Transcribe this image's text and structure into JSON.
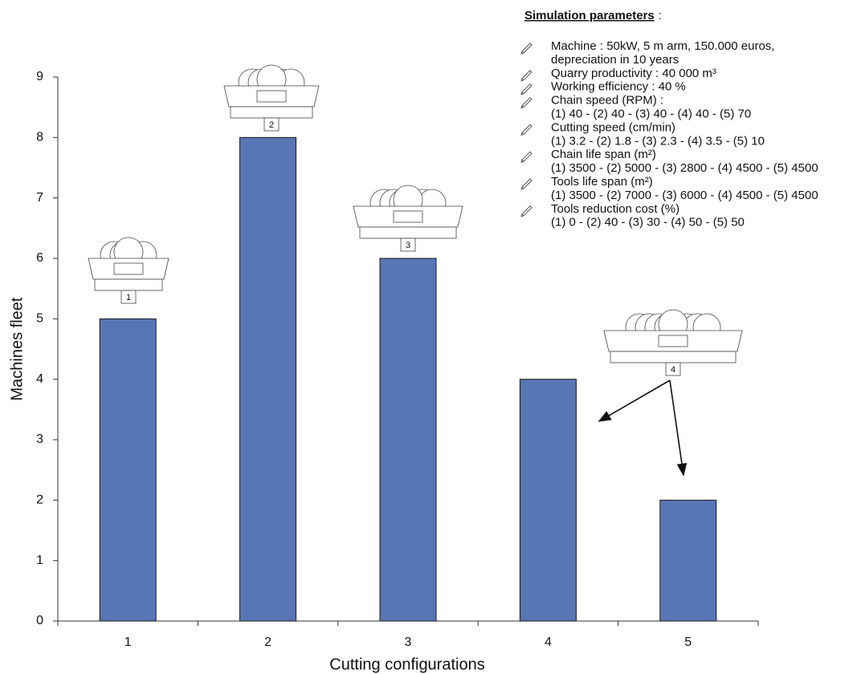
{
  "chart_data": {
    "type": "bar",
    "x_label": "Cutting configurations",
    "y_label": "Machines fleet",
    "categories": [
      "1",
      "2",
      "3",
      "4",
      "5"
    ],
    "values": [
      5,
      8,
      6,
      4,
      2
    ],
    "color": "#5876b4",
    "ylim": [
      0,
      9
    ],
    "yticks": [
      0,
      1,
      2,
      3,
      4,
      5,
      6,
      7,
      8,
      9
    ],
    "grid": false,
    "icon_labels": [
      "1",
      "2",
      "3",
      "4"
    ],
    "parameters": {
      "title": "Simulation parameters",
      "separator": ":",
      "items": [
        [
          "Machine : 50kW,  5 m arm, 150.000 euros,",
          "depreciation in 10 years"
        ],
        [
          "Quarry productivity : 40 000 m³"
        ],
        [
          "Working efficiency : 40 %"
        ],
        [
          "Chain speed (RPM) :",
          "(1) 40 - (2) 40 - (3) 40 - (4) 40 - (5) 70"
        ],
        [
          "Cutting speed (cm/min)",
          "(1) 3.2 - (2) 1.8 - (3) 2.3 - (4) 3.5 - (5) 10"
        ],
        [
          "Chain life span (m²)",
          "(1) 3500 - (2) 5000 - (3) 2800 - (4) 4500 - (5) 4500"
        ],
        [
          "Tools life span (m²)",
          "(1) 3500 - (2) 7000 - (3) 6000 - (4) 4500 - (5) 4500"
        ],
        [
          "Tools reduction cost (%)",
          "(1) 0 - (2) 40 - (3) 30 - (4) 50 - (5) 50"
        ]
      ]
    }
  }
}
